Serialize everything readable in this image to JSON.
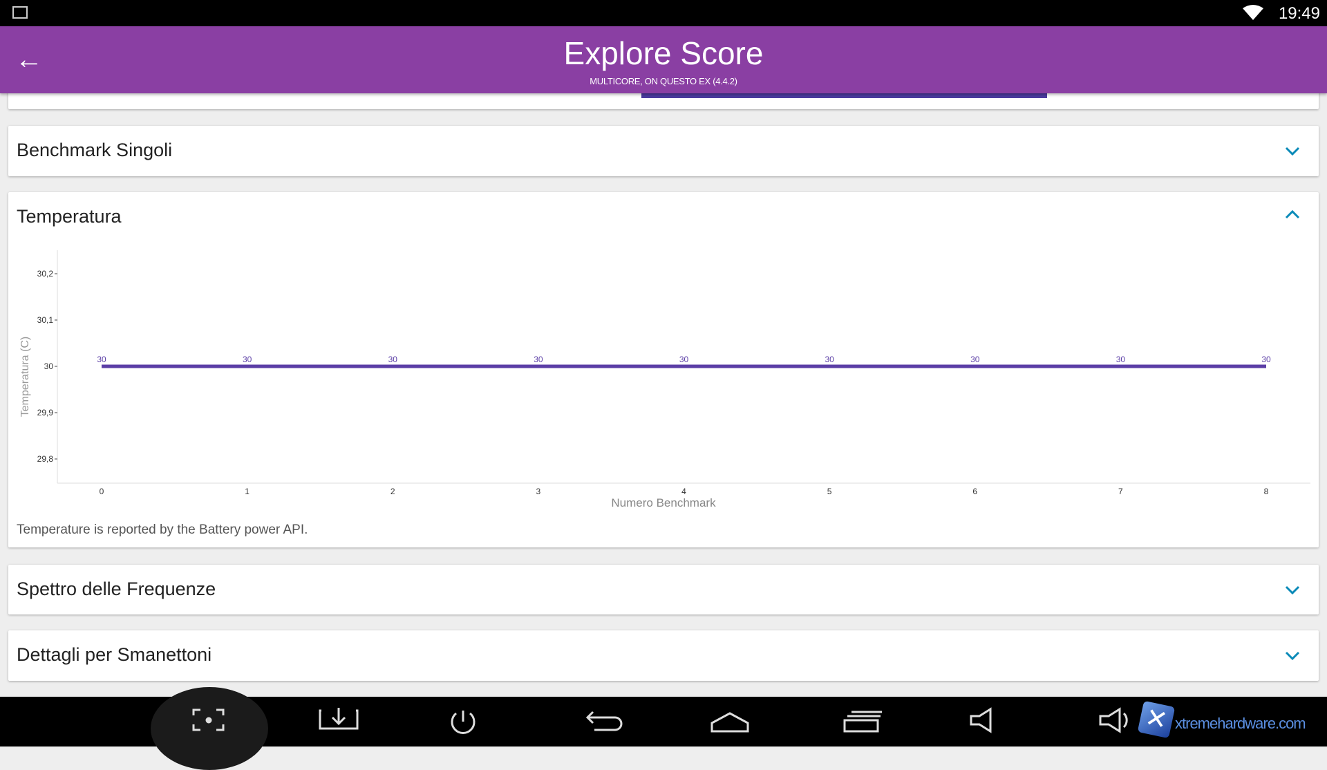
{
  "status_bar": {
    "time": "19:49",
    "icons": [
      "image-icon",
      "wifi-icon"
    ]
  },
  "app_bar": {
    "title": "Explore Score",
    "subtitle": "MULTICORE, ON QUESTO EX (4.4.2)",
    "back_icon": "arrow-left-icon"
  },
  "sections": [
    {
      "title": "Benchmark Singoli",
      "expanded": false
    },
    {
      "title": "Temperatura",
      "expanded": true,
      "note": "Temperature is reported by the Battery power API."
    },
    {
      "title": "Spettro delle Frequenze",
      "expanded": false
    },
    {
      "title": "Dettagli per Smanettoni",
      "expanded": false
    }
  ],
  "accent": "#0a8ab8",
  "chart_data": {
    "type": "line",
    "xlabel": "Numero Benchmark",
    "ylabel": "Temperatura (C)",
    "x": [
      0,
      1,
      2,
      3,
      4,
      5,
      6,
      7,
      8
    ],
    "y": [
      30,
      30,
      30,
      30,
      30,
      30,
      30,
      30,
      30
    ],
    "data_labels": [
      "30",
      "30",
      "30",
      "30",
      "30",
      "30",
      "30",
      "30",
      "30"
    ],
    "yticks": [
      "30,2",
      "30,1",
      "30",
      "29,9",
      "29,8"
    ],
    "ytick_values": [
      30.2,
      30.1,
      30,
      29.9,
      29.8
    ],
    "xticks": [
      "0",
      "1",
      "2",
      "3",
      "4",
      "5",
      "6",
      "7",
      "8"
    ],
    "color": "#5b3ea6"
  },
  "nav_bar": {
    "icons": [
      "screenshot-icon",
      "download-icon",
      "power-icon",
      "back-icon",
      "home-icon",
      "recents-icon",
      "volume-down-icon",
      "volume-up-icon"
    ],
    "watermark": "xtremehardware.com"
  }
}
